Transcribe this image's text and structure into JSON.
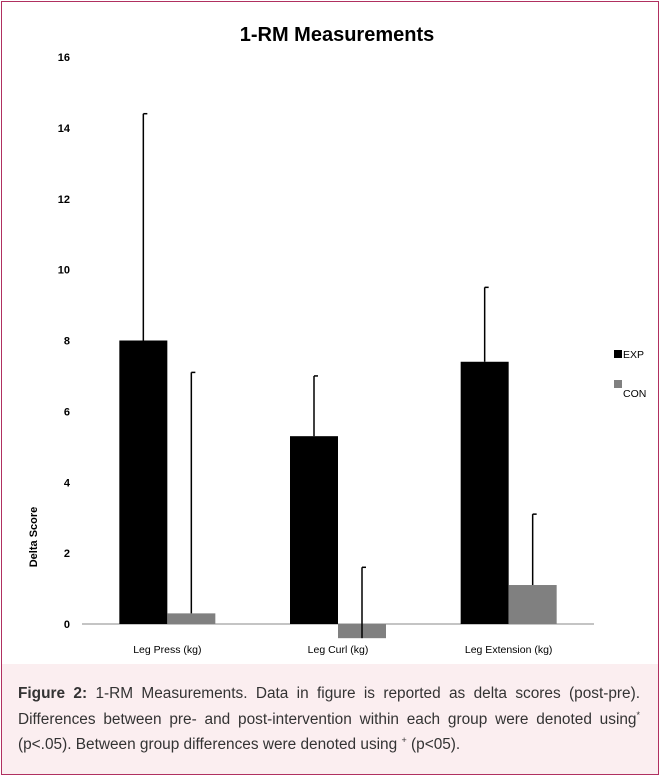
{
  "chart_data": {
    "type": "bar",
    "title": "1-RM Measurements",
    "xlabel": "",
    "ylabel": "Delta Score",
    "ylim": [
      0,
      16
    ],
    "y_ticks": [
      0,
      2,
      4,
      6,
      8,
      10,
      12,
      14,
      16
    ],
    "categories": [
      "Leg Press (kg)",
      "Leg Curl (kg)",
      "Leg Extension (kg)"
    ],
    "series": [
      {
        "name": "EXP",
        "values": [
          8.0,
          5.3,
          7.4
        ],
        "error_plus": [
          6.4,
          1.7,
          2.1
        ],
        "color": "#000000"
      },
      {
        "name": "CON",
        "values": [
          0.3,
          -0.4,
          1.1
        ],
        "error_plus": [
          6.8,
          2.0,
          2.0
        ],
        "color": "#808080"
      }
    ],
    "grid": false,
    "legend_position": "right"
  },
  "caption": {
    "label": "Figure 2:",
    "text_1": "1-RM Measurements. Data in figure is reported as delta scores (post-pre). Differences between pre- and post-intervention within each group were denoted using",
    "mark_1": "*",
    "text_2": "(p<.05). Between group differences were denoted using",
    "mark_2": "+",
    "text_3": "(p<05)."
  }
}
